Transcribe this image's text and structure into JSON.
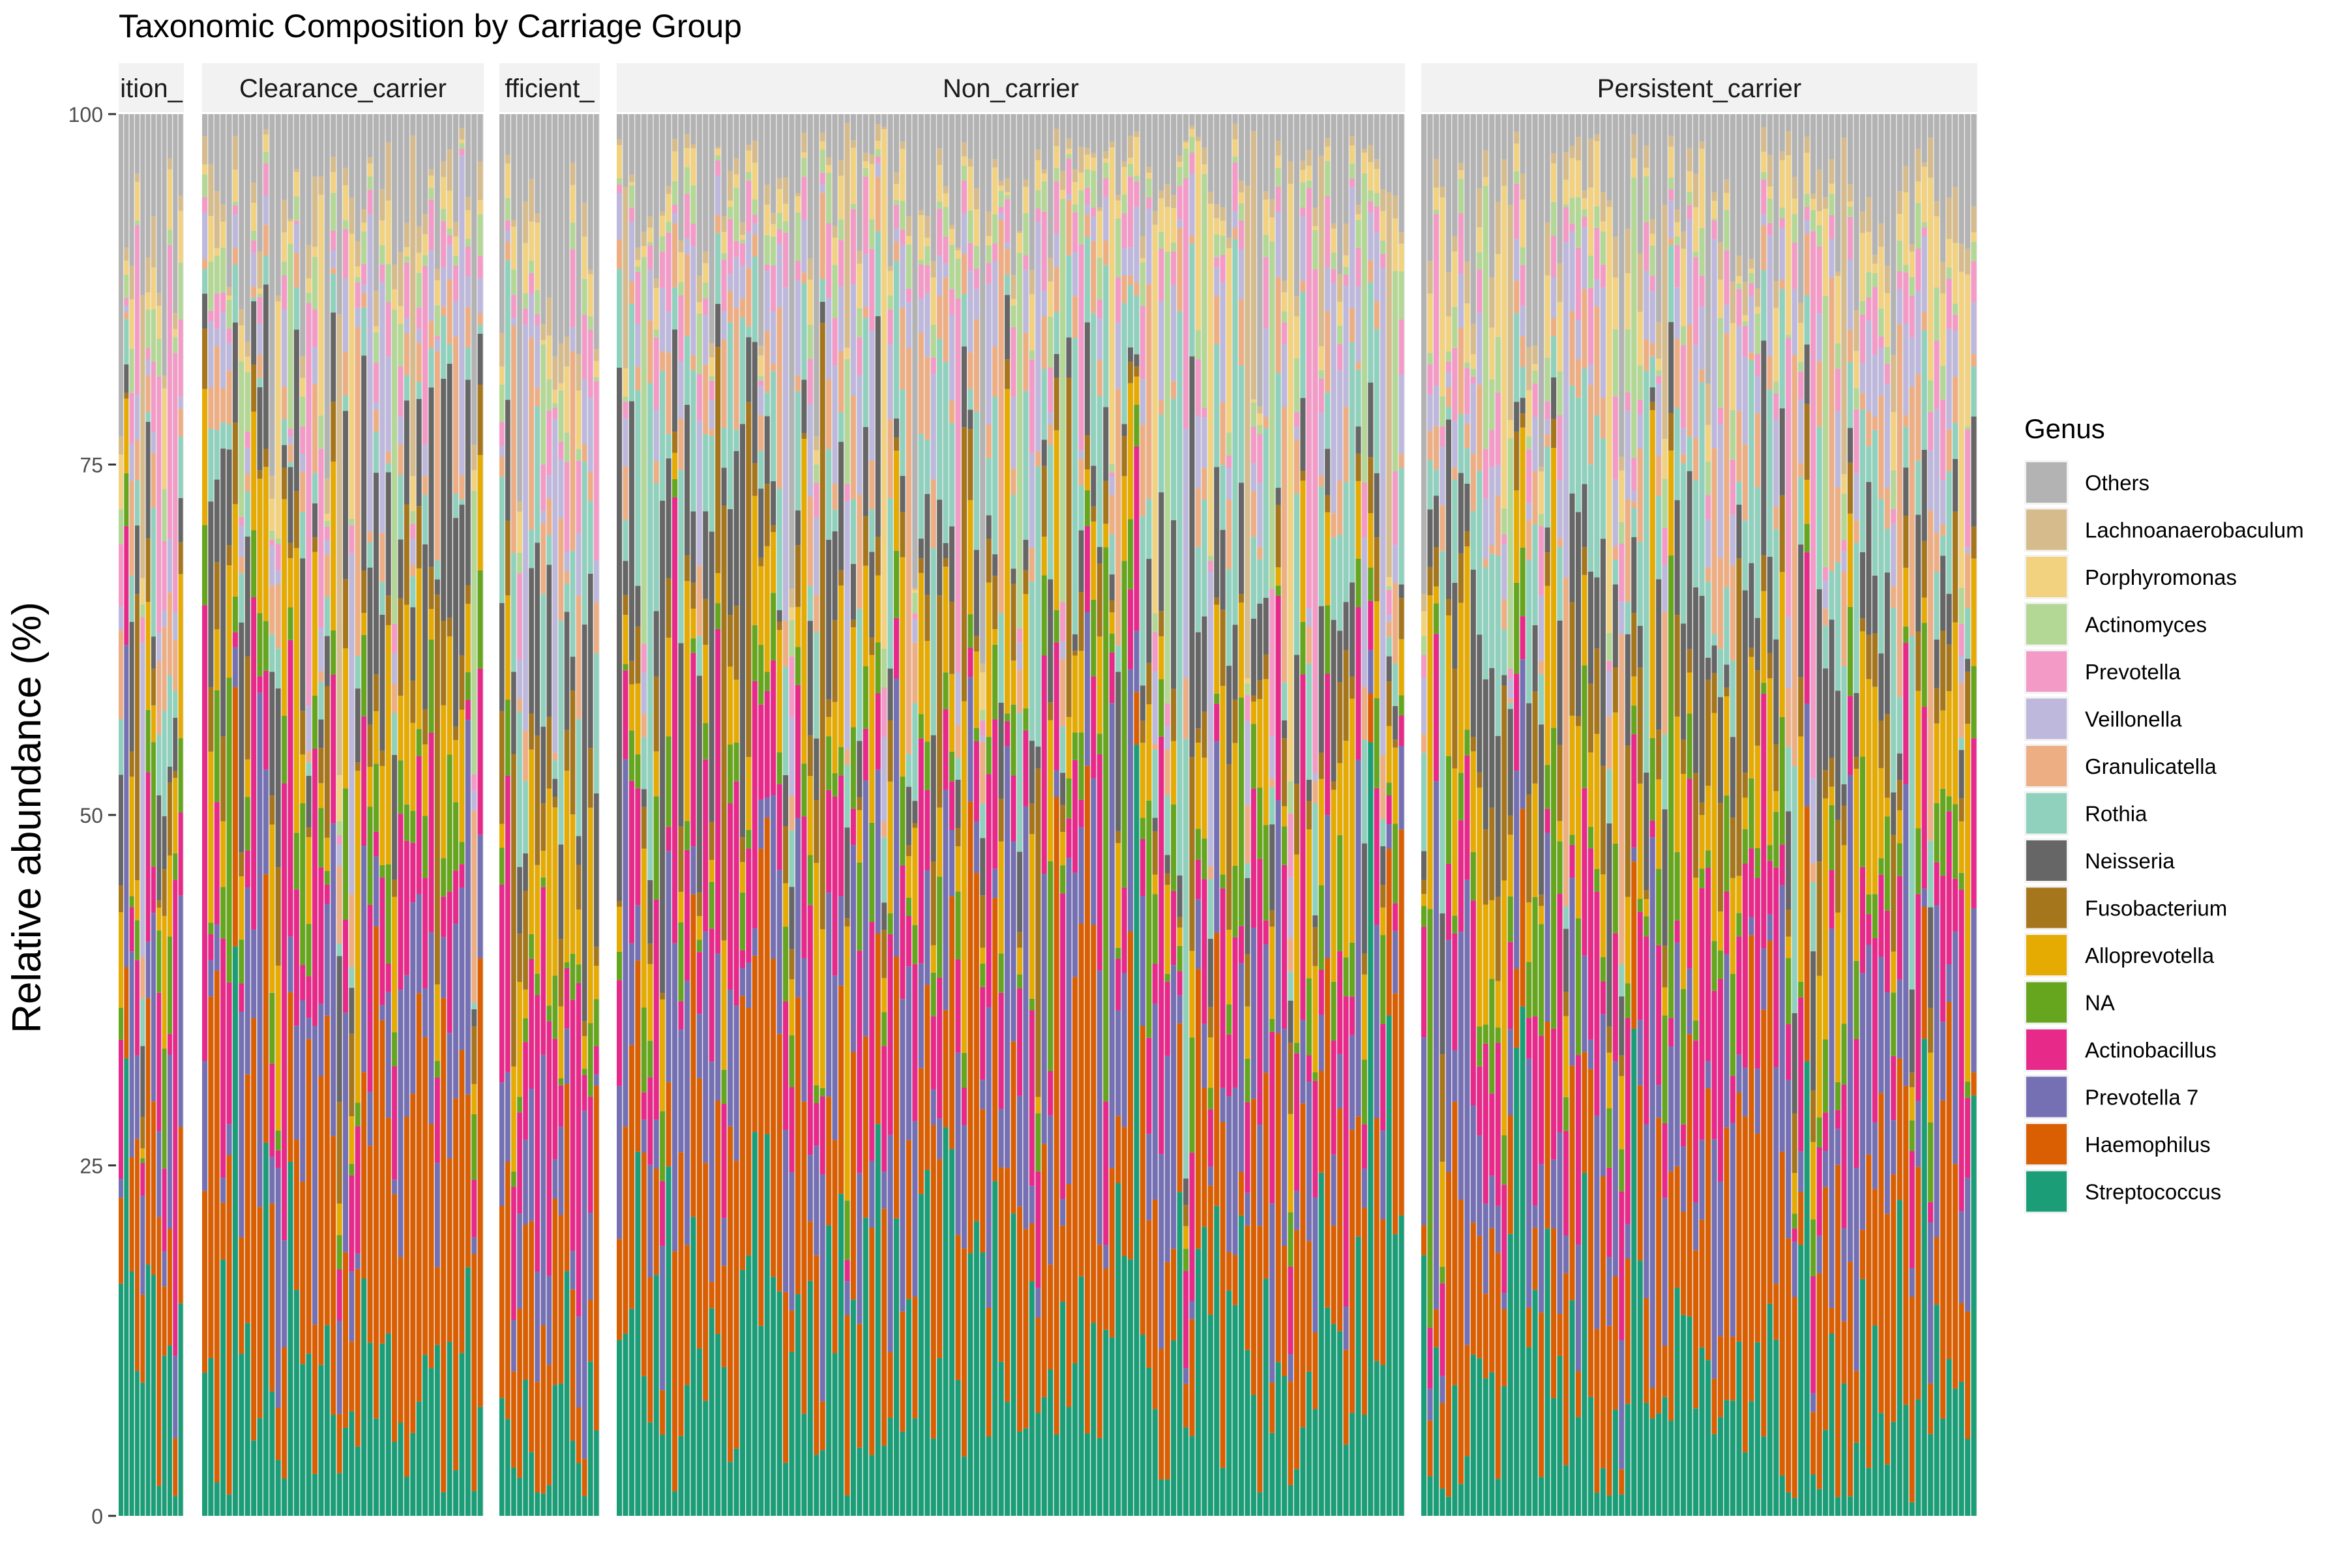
{
  "chart_data": {
    "type": "bar",
    "stacked": true,
    "faceted": true,
    "title": "Taxonomic Composition by Carriage Group",
    "xlabel": "",
    "ylabel": "Relative abundance (%)",
    "ylim": [
      0,
      100
    ],
    "y_ticks": [
      0,
      25,
      50,
      75,
      100
    ],
    "grid": false,
    "legend": {
      "title": "Genus",
      "position": "right",
      "entries": [
        {
          "name": "Others",
          "color": "#B3B3B3"
        },
        {
          "name": "Lachnoanaerobaculum",
          "color": "#D6BB8D"
        },
        {
          "name": "Porphyromonas",
          "color": "#F2D27F"
        },
        {
          "name": "Actinomyces",
          "color": "#B3D794"
        },
        {
          "name": "Prevotella",
          "color": "#F39AC7"
        },
        {
          "name": "Veillonella",
          "color": "#BDB8DC"
        },
        {
          "name": "Granulicatella",
          "color": "#EEAE84"
        },
        {
          "name": "Rothia",
          "color": "#8FD1BD"
        },
        {
          "name": "Neisseria",
          "color": "#666666"
        },
        {
          "name": "Fusobacterium",
          "color": "#A6761D"
        },
        {
          "name": "Alloprevotella",
          "color": "#E6AB02"
        },
        {
          "name": "NA",
          "color": "#66A61E"
        },
        {
          "name": "Actinobacillus",
          "color": "#E7298A"
        },
        {
          "name": "Prevotella 7",
          "color": "#7570B3"
        },
        {
          "name": "Haemophilus",
          "color": "#D95F02"
        },
        {
          "name": "Streptococcus",
          "color": "#1B9E77"
        }
      ]
    },
    "stack_order_bottom_to_top": [
      "Streptococcus",
      "Haemophilus",
      "Prevotella 7",
      "Actinobacillus",
      "NA",
      "Alloprevotella",
      "Fusobacterium",
      "Neisseria",
      "Rothia",
      "Granulicatella",
      "Veillonella",
      "Prevotella",
      "Actinomyces",
      "Porphyromonas",
      "Lachnoanaerobaculum",
      "Others"
    ],
    "facets": [
      {
        "label": "ition_",
        "samples": 12,
        "mean_composition": {
          "Streptococcus": 12,
          "Haemophilus": 14,
          "Prevotella 7": 8,
          "Actinobacillus": 9,
          "NA": 4,
          "Alloprevotella": 6,
          "Fusobacterium": 3,
          "Neisseria": 6,
          "Rothia": 4,
          "Granulicatella": 4,
          "Veillonella": 4,
          "Prevotella": 3,
          "Actinomyces": 2,
          "Porphyromonas": 3,
          "Lachnoanaerobaculum": 2,
          "Others": 16
        }
      },
      {
        "label": "Clearance_carrier",
        "samples": 46,
        "mean_composition": {
          "Streptococcus": 11,
          "Haemophilus": 18,
          "Prevotella 7": 9,
          "Actinobacillus": 8,
          "NA": 5,
          "Alloprevotella": 9,
          "Fusobacterium": 4,
          "Neisseria": 10,
          "Rothia": 3,
          "Granulicatella": 3,
          "Veillonella": 3,
          "Prevotella": 2,
          "Actinomyces": 2,
          "Porphyromonas": 2,
          "Lachnoanaerobaculum": 2,
          "Others": 9
        }
      },
      {
        "label": "fficient_",
        "samples": 17,
        "mean_composition": {
          "Streptococcus": 6,
          "Haemophilus": 13,
          "Prevotella 7": 6,
          "Actinobacillus": 12,
          "NA": 3,
          "Alloprevotella": 9,
          "Fusobacterium": 5,
          "Neisseria": 7,
          "Rothia": 9,
          "Granulicatella": 4,
          "Veillonella": 3,
          "Prevotella": 4,
          "Actinomyces": 2,
          "Porphyromonas": 3,
          "Lachnoanaerobaculum": 2,
          "Others": 12
        }
      },
      {
        "label": "Non_carrier",
        "samples": 128,
        "mean_composition": {
          "Streptococcus": 14,
          "Haemophilus": 17,
          "Prevotella 7": 11,
          "Actinobacillus": 9,
          "NA": 4,
          "Alloprevotella": 7,
          "Fusobacterium": 3,
          "Neisseria": 6,
          "Rothia": 7,
          "Granulicatella": 4,
          "Veillonella": 4,
          "Prevotella": 3,
          "Actinomyces": 2,
          "Porphyromonas": 2,
          "Lachnoanaerobaculum": 1,
          "Others": 6
        }
      },
      {
        "label": "Persistent_carrier",
        "samples": 90,
        "mean_composition": {
          "Streptococcus": 9,
          "Haemophilus": 14,
          "Prevotella 7": 10,
          "Actinobacillus": 9,
          "NA": 5,
          "Alloprevotella": 8,
          "Fusobacterium": 4,
          "Neisseria": 8,
          "Rothia": 6,
          "Granulicatella": 4,
          "Veillonella": 4,
          "Prevotella": 3,
          "Actinomyces": 2,
          "Porphyromonas": 3,
          "Lachnoanaerobaculum": 2,
          "Others": 9
        }
      }
    ]
  }
}
